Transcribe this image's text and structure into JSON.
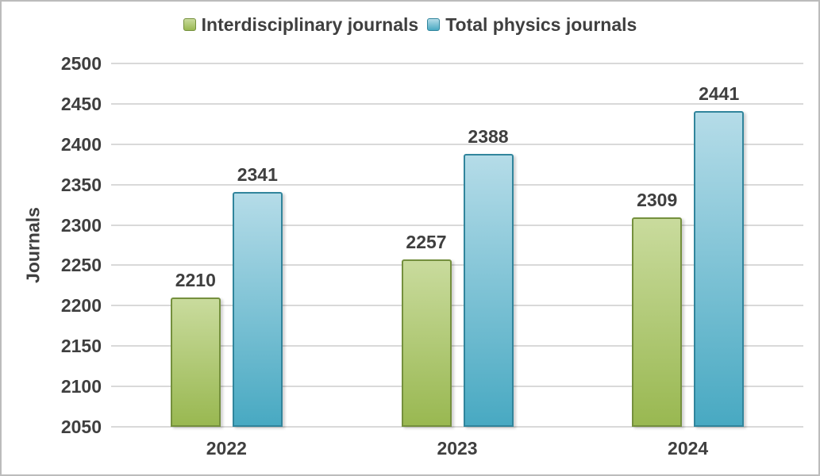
{
  "chart_data": {
    "type": "bar",
    "title": "",
    "ylabel": "Journals",
    "xlabel": "",
    "categories": [
      "2022",
      "2023",
      "2024"
    ],
    "series": [
      {
        "name": "Interdisciplinary journals",
        "values": [
          2210,
          2257,
          2309
        ],
        "fill_top": "#c9db9d",
        "fill_bottom": "#99b851",
        "border": "#75903e"
      },
      {
        "name": "Total physics journals",
        "values": [
          2341,
          2388,
          2441
        ],
        "fill_top": "#b5dce8",
        "fill_bottom": "#48a9c2",
        "border": "#31859c"
      }
    ],
    "ylim": [
      2050,
      2500
    ],
    "ytick_step": 50,
    "grid": "horizontal",
    "legend_position": "top",
    "value_labels": true
  },
  "colors": {
    "text": "#3f3f3f",
    "gridline": "#d9d9d9",
    "background": "#ffffff",
    "frame_border": "#bcbcbc"
  }
}
